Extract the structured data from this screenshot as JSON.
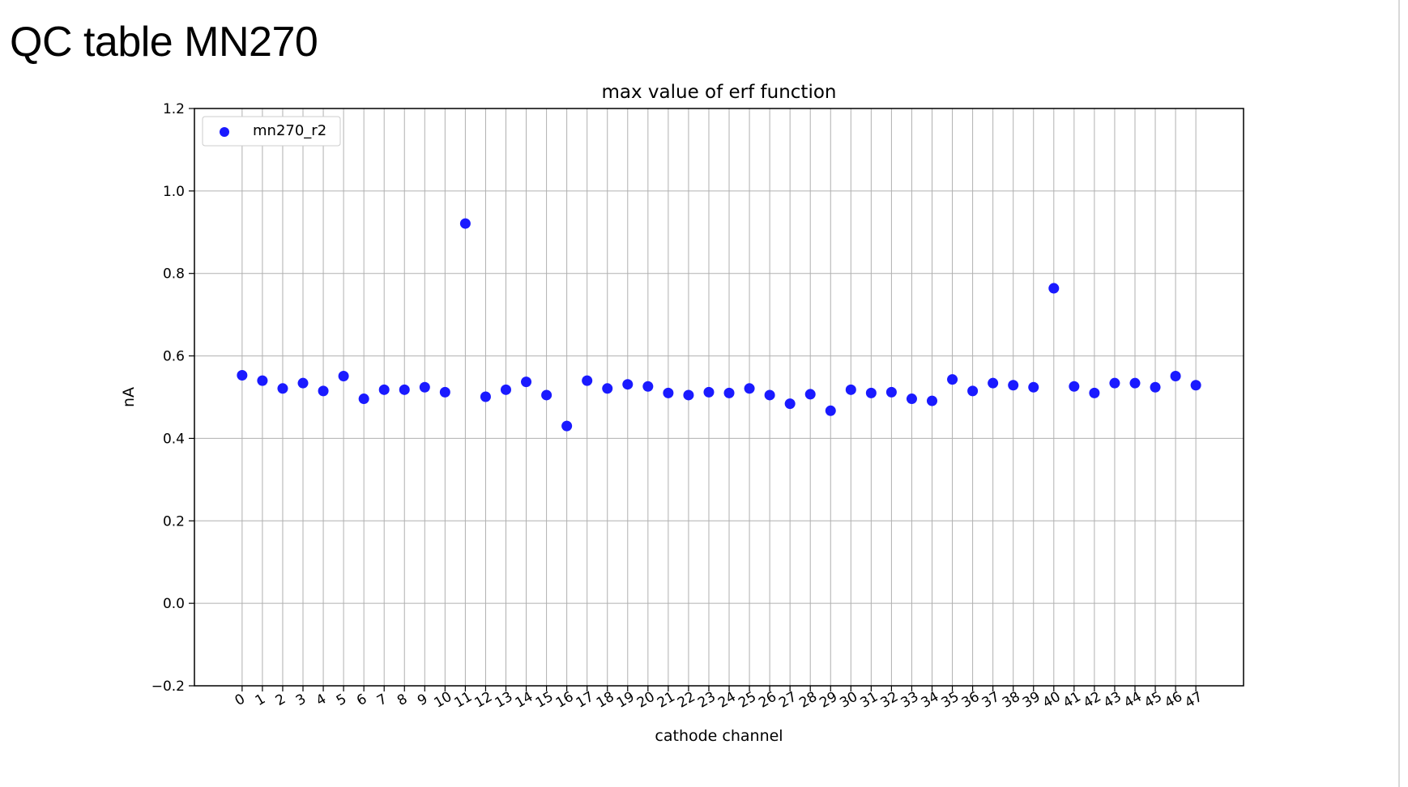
{
  "slide": {
    "title": "QC table MN270"
  },
  "colors": {
    "marker": "#1a1aff",
    "grid": "#b0b0b0",
    "axis": "#000000",
    "legend_border": "#cccccc",
    "background": "#ffffff"
  },
  "chart_data": {
    "type": "scatter",
    "title": "max value of erf function",
    "xlabel": "cathode channel",
    "ylabel": "nA",
    "xlim": [
      -2.35,
      49.35
    ],
    "ylim": [
      -0.2,
      1.2
    ],
    "grid": true,
    "legend_position": "top-left",
    "x_ticks": [
      "0",
      "1",
      "2",
      "3",
      "4",
      "5",
      "6",
      "7",
      "8",
      "9",
      "10",
      "11",
      "12",
      "13",
      "14",
      "15",
      "16",
      "17",
      "18",
      "19",
      "20",
      "21",
      "22",
      "23",
      "24",
      "25",
      "26",
      "27",
      "28",
      "29",
      "30",
      "31",
      "32",
      "33",
      "34",
      "35",
      "36",
      "37",
      "38",
      "39",
      "40",
      "41",
      "42",
      "43",
      "44",
      "45",
      "46",
      "47"
    ],
    "y_ticks": [
      "−0.2",
      "0.0",
      "0.2",
      "0.4",
      "0.6",
      "0.8",
      "1.0",
      "1.2"
    ],
    "y_tick_values": [
      -0.2,
      0.0,
      0.2,
      0.4,
      0.6,
      0.8,
      1.0,
      1.2
    ],
    "series": [
      {
        "name": "mn270_r2",
        "x": [
          0,
          1,
          2,
          3,
          4,
          5,
          6,
          7,
          8,
          9,
          10,
          11,
          12,
          13,
          14,
          15,
          16,
          17,
          18,
          19,
          20,
          21,
          22,
          23,
          24,
          25,
          26,
          27,
          28,
          29,
          30,
          31,
          32,
          33,
          34,
          35,
          36,
          37,
          38,
          39,
          40,
          41,
          42,
          43,
          44,
          45,
          46,
          47
        ],
        "y": [
          0.553,
          0.54,
          0.521,
          0.534,
          0.515,
          0.551,
          0.496,
          0.518,
          0.518,
          0.524,
          0.512,
          0.921,
          0.501,
          0.518,
          0.537,
          0.505,
          0.43,
          0.54,
          0.521,
          0.531,
          0.526,
          0.51,
          0.505,
          0.512,
          0.51,
          0.521,
          0.505,
          0.484,
          0.507,
          0.467,
          0.518,
          0.51,
          0.512,
          0.496,
          0.491,
          0.543,
          0.515,
          0.534,
          0.529,
          0.524,
          0.764,
          0.526,
          0.51,
          0.534,
          0.534,
          0.524,
          0.551,
          0.529
        ]
      }
    ]
  }
}
